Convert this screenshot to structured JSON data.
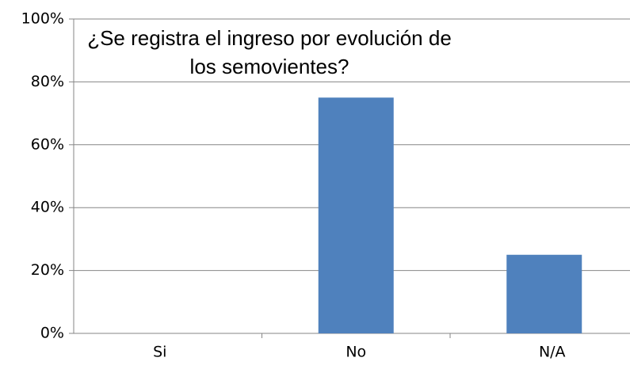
{
  "chart_data": {
    "type": "bar",
    "title": "¿Se registra el ingreso por evolución de los semovientes?",
    "categories": [
      "Si",
      "No",
      "N/A"
    ],
    "values": [
      0,
      75,
      25
    ],
    "color": "#4f81bd",
    "ylim": [
      0,
      100
    ],
    "yticks": [
      {
        "value": 0,
        "label": "0%"
      },
      {
        "value": 20,
        "label": "20%"
      },
      {
        "value": 40,
        "label": "40%"
      },
      {
        "value": 60,
        "label": "60%"
      },
      {
        "value": 80,
        "label": "80%"
      },
      {
        "value": 100,
        "label": "100%"
      }
    ],
    "grid": true
  }
}
